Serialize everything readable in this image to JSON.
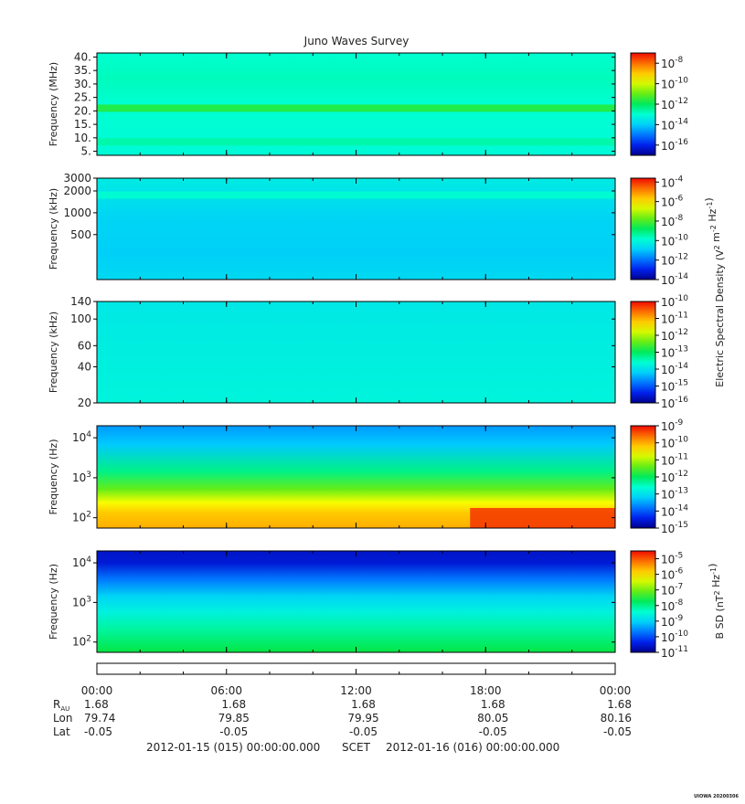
{
  "chart_data": {
    "type": "heatmap",
    "title": "Juno Waves Survey",
    "panels": [
      {
        "ylabel": "Frequency (MHz)",
        "yscale": "linear",
        "ylim": [
          3.5,
          41.5
        ],
        "yticks": [
          {
            "v": 40,
            "t": "40."
          },
          {
            "v": 35,
            "t": "35."
          },
          {
            "v": 30,
            "t": "30."
          },
          {
            "v": 25,
            "t": "25."
          },
          {
            "v": 20,
            "t": "20."
          },
          {
            "v": 15,
            "t": "15."
          },
          {
            "v": 10,
            "t": "10."
          },
          {
            "v": 5,
            "t": "5."
          }
        ],
        "colorbar": {
          "min_exp": -17,
          "max_exp": -7,
          "label_exps": [
            -8,
            -10,
            -12,
            -14,
            -16
          ]
        },
        "description_bands": [
          {
            "freq": 21,
            "level_exp": -11.5
          },
          {
            "freq": 8.5,
            "level_exp": -12.6
          }
        ],
        "background_level_exp": -13.0
      },
      {
        "ylabel": "Frequency (kHz)",
        "yscale": "log",
        "ylim": [
          120,
          3000
        ],
        "yticks": [
          {
            "v": 3000,
            "t": "3000"
          },
          {
            "v": 2000,
            "t": "2000"
          },
          {
            "v": 1000,
            "t": "1000"
          },
          {
            "v": 500,
            "t": "500"
          }
        ],
        "colorbar": {
          "min_exp": -14,
          "max_exp": -3.6,
          "label_exps": [
            -4,
            -6,
            -8,
            -10,
            -12,
            -14
          ]
        },
        "description_bands": [
          {
            "freq": 1750,
            "level_exp": -9.8
          }
        ],
        "background_level_exp": -10.6
      },
      {
        "ylabel": "Frequency (kHz)",
        "yscale": "log",
        "ylim": [
          20,
          140
        ],
        "yticks": [
          {
            "v": 140,
            "t": "140"
          },
          {
            "v": 100,
            "t": "100"
          },
          {
            "v": 60,
            "t": "60"
          },
          {
            "v": 40,
            "t": "40"
          },
          {
            "v": 20,
            "t": "20"
          }
        ],
        "colorbar": {
          "min_exp": -16,
          "max_exp": -10,
          "label_exps": [
            -10,
            -11,
            -12,
            -13,
            -14,
            -15,
            -16
          ]
        },
        "description_bands": [],
        "background_level_exp": -13.9
      },
      {
        "ylabel": "Frequency (Hz)",
        "yscale": "log",
        "ylim": [
          55,
          20000
        ],
        "yticks": [
          {
            "v": 10000,
            "t": "10",
            "sup": "4"
          },
          {
            "v": 1000,
            "t": "10",
            "sup": "3"
          },
          {
            "v": 100,
            "t": "10",
            "sup": "2"
          }
        ],
        "colorbar": {
          "min_exp": -15,
          "max_exp": -9,
          "label_exps": [
            -9,
            -10,
            -11,
            -12,
            -13,
            -14,
            -15
          ]
        },
        "description_bands": [],
        "background_level_exp": -12.0
      },
      {
        "ylabel": "Frequency (Hz)",
        "yscale": "log",
        "ylim": [
          55,
          20000
        ],
        "yticks": [
          {
            "v": 10000,
            "t": "10",
            "sup": "4"
          },
          {
            "v": 1000,
            "t": "10",
            "sup": "3"
          },
          {
            "v": 100,
            "t": "10",
            "sup": "2"
          }
        ],
        "colorbar": {
          "min_exp": -11,
          "max_exp": -4.5,
          "label_exps": [
            -5,
            -6,
            -7,
            -8,
            -9,
            -10,
            -11
          ]
        },
        "description_bands": [],
        "background_level_exp": -8.5
      }
    ],
    "colorbar_labels": {
      "electric": "Electric Spectral Density (V² m⁻² Hz⁻¹)",
      "electric_base": "Electric Spectral Density (V",
      "electric_mid": " m",
      "electric_end": " Hz",
      "electric_sup1": "2",
      "electric_sup2": "-2",
      "electric_sup3": "-1",
      "bsd_base": "B SD (nT",
      "bsd_mid": " Hz",
      "bsd_sup1": "2",
      "bsd_sup2": "-1"
    },
    "x_axis": {
      "hours": [
        0,
        6,
        12,
        18,
        24
      ],
      "time_labels": [
        "00:00",
        "06:00",
        "12:00",
        "18:00",
        "00:00"
      ],
      "r_label": "R",
      "r_sub": "AU",
      "lon_label": "Lon",
      "lat_label": "Lat",
      "r_au": [
        "1.68",
        "1.68",
        "1.68",
        "1.68",
        "1.68"
      ],
      "lon": [
        "79.74",
        "79.85",
        "79.95",
        "80.05",
        "80.16"
      ],
      "lat": [
        "-0.05",
        "-0.05",
        "-0.05",
        "-0.05",
        "-0.05"
      ]
    },
    "footer": {
      "start": "2012-01-15 (015) 00:00:00.000",
      "scet": "SCET",
      "end": "2012-01-16 (016) 00:00:00.000",
      "stamp": "UIOWA 20200306"
    }
  }
}
